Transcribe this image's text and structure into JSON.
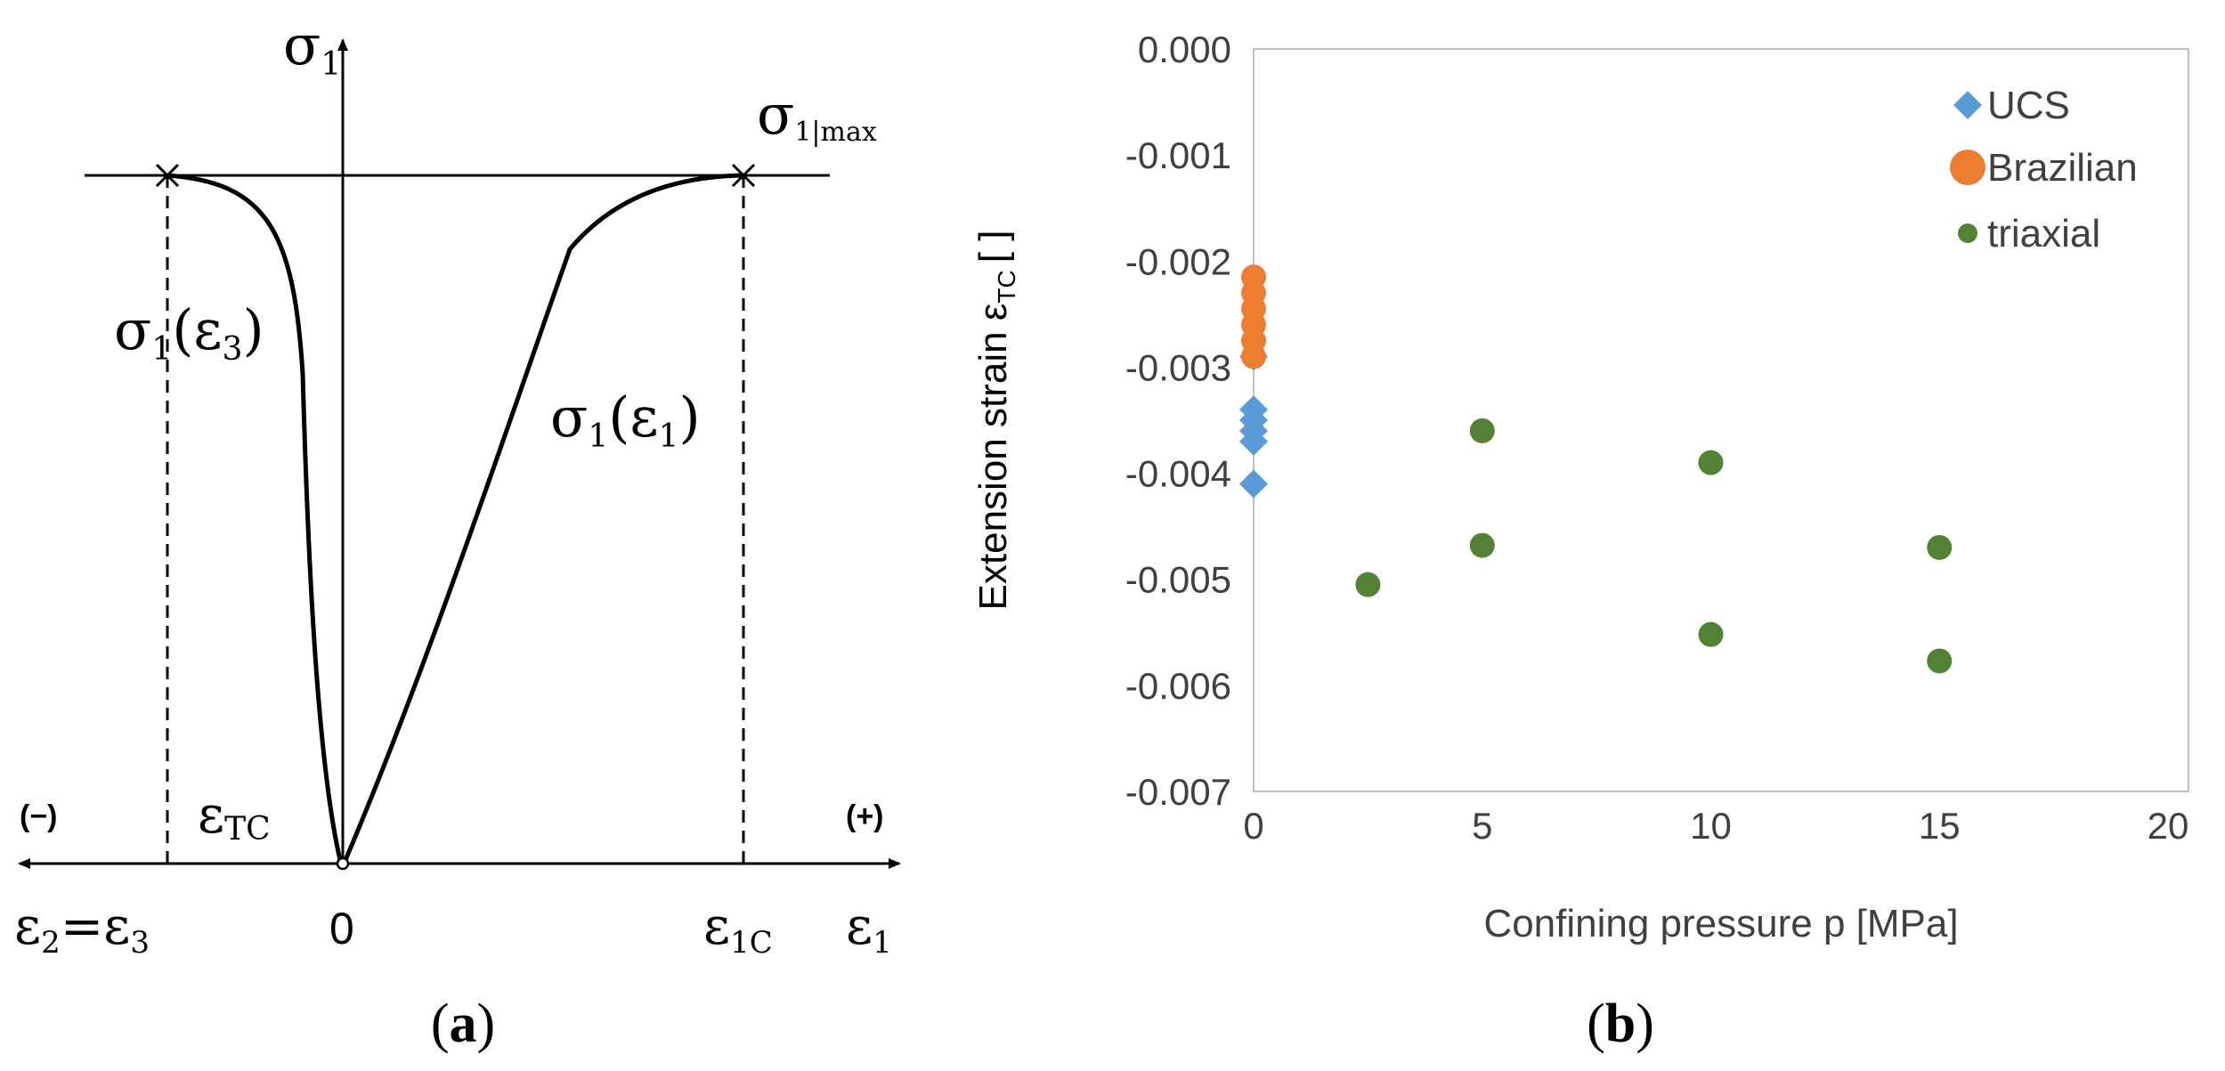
{
  "panel_a": {
    "sigma1_axis": "σ",
    "sigma1_axis_sub": "1",
    "sigma1_max": "σ",
    "sigma1_max_sub": "1|max",
    "curve_left_label": "σ",
    "curve_left_sub": "1",
    "curve_left_arg": "(ε",
    "curve_left_arg_sub": "3",
    "curve_left_close": ")",
    "curve_right_label": "σ",
    "curve_right_sub": "1",
    "curve_right_arg": "(ε",
    "curve_right_arg_sub": "1",
    "curve_right_close": ")",
    "neg_sign": "(−)",
    "pos_sign": "(+)",
    "eps_tc": "ε",
    "eps_tc_sub": "TC",
    "eps2": "ε",
    "eps2_sub": "2",
    "eps_eq": "=ε",
    "eps3_sub": "3",
    "origin": "0",
    "eps1c": "ε",
    "eps1c_sub": "1C",
    "eps1": "ε",
    "eps1_sub": "1",
    "caption": "(a)",
    "caption_letter": "a"
  },
  "panel_b": {
    "caption": "(b)",
    "caption_letter": "b"
  },
  "chart_data": {
    "type": "scatter",
    "title": "",
    "xlabel": "Confining pressure p [MPa]",
    "ylabel": "Extension strain ε",
    "ylabel_sub": "TC",
    "ylabel_units": "[ ]",
    "xlim": [
      0,
      20
    ],
    "ylim": [
      -0.007,
      0.0
    ],
    "x_ticks": [
      0,
      5,
      10,
      15,
      20
    ],
    "x_tick_labels": [
      "0",
      "5",
      "10",
      "15",
      "20"
    ],
    "y_ticks": [
      0.0,
      -0.001,
      -0.002,
      -0.003,
      -0.004,
      -0.005,
      -0.006,
      -0.007
    ],
    "y_tick_labels": [
      "0.000",
      "-0.001",
      "-0.002",
      "-0.003",
      "-0.004",
      "-0.005",
      "-0.006",
      "-0.007"
    ],
    "grid": false,
    "legend_position": "top-right",
    "series": [
      {
        "name": "UCS",
        "marker": "diamond",
        "color": "#5b9bd5",
        "points": [
          [
            0,
            -0.0029
          ],
          [
            0,
            -0.0034
          ],
          [
            0,
            -0.0035
          ],
          [
            0,
            -0.0036
          ],
          [
            0,
            -0.0037
          ],
          [
            0,
            -0.0041
          ]
        ]
      },
      {
        "name": "Brazilian",
        "marker": "circle",
        "color": "#ed7d31",
        "points": [
          [
            0,
            -0.00215
          ],
          [
            0,
            -0.0023
          ],
          [
            0,
            -0.00245
          ],
          [
            0,
            -0.0026
          ],
          [
            0,
            -0.00275
          ],
          [
            0,
            -0.0029
          ]
        ]
      },
      {
        "name": "triaxial",
        "marker": "circle",
        "color": "#548235",
        "points": [
          [
            2.5,
            -0.00505
          ],
          [
            5,
            -0.0036
          ],
          [
            5,
            -0.00468
          ],
          [
            10,
            -0.0039
          ],
          [
            10,
            -0.00552
          ],
          [
            15,
            -0.0047
          ],
          [
            15,
            -0.00577
          ]
        ]
      }
    ]
  }
}
